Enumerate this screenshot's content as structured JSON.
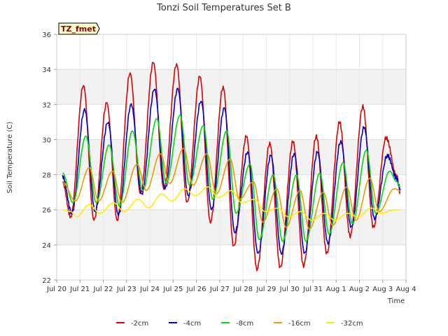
{
  "chart_data": {
    "type": "line",
    "title": "Tonzi Soil Temperatures Set B",
    "xlabel": "Time",
    "ylabel": "Soil Temperature (C)",
    "tag": "TZ_fmet",
    "xlim": [
      20,
      35
    ],
    "ylim": [
      22,
      36
    ],
    "x_ticks": [
      20,
      21,
      22,
      23,
      24,
      25,
      26,
      27,
      28,
      29,
      30,
      31,
      32,
      33,
      34,
      35
    ],
    "x_tick_labels": [
      "Jul 20",
      "Jul 21",
      "Jul 22",
      "Jul 23",
      "Jul 24",
      "Jul 25",
      "Jul 26",
      "Jul 27",
      "Jul 28",
      "Jul 29",
      "Jul 30",
      "Jul 31",
      "Aug 1",
      "Aug 2",
      "Aug 3",
      "Aug 4"
    ],
    "y_ticks": [
      22,
      24,
      26,
      28,
      30,
      32,
      34,
      36
    ],
    "y_tick_labels": [
      "22",
      "24",
      "26",
      "28",
      "30",
      "32",
      "34",
      "36"
    ],
    "grid": true,
    "legend_position": "bottom",
    "x_range_start_label": "Jul 20",
    "sampling": "daily minima and maxima per series; x in days of July (20 = Jul 20)",
    "series": [
      {
        "name": "-2cm",
        "color": "#dd0000",
        "x": [
          20.25,
          20.6,
          21.15,
          21.6,
          22.15,
          22.6,
          23.15,
          23.6,
          24.15,
          24.6,
          25.15,
          25.6,
          26.15,
          26.6,
          27.15,
          27.6,
          28.15,
          28.6,
          29.15,
          29.6,
          30.15,
          30.6,
          31.15,
          31.6,
          32.15,
          32.6,
          33.15,
          33.6,
          34.15,
          34.6,
          34.75
        ],
        "y": [
          27.6,
          25.6,
          33.1,
          25.4,
          32.1,
          25.4,
          33.8,
          26.9,
          34.4,
          27.2,
          34.3,
          26.4,
          33.6,
          25.3,
          33.0,
          23.9,
          30.2,
          22.6,
          29.8,
          22.7,
          29.9,
          22.8,
          30.2,
          23.5,
          31.0,
          24.5,
          31.9,
          25.0,
          30.1,
          27.9,
          27.0
        ]
      },
      {
        "name": "-4cm",
        "color": "#0000cc",
        "x": [
          20.25,
          20.65,
          21.2,
          21.65,
          22.2,
          22.65,
          23.2,
          23.65,
          24.2,
          24.65,
          25.2,
          25.65,
          26.2,
          26.65,
          27.2,
          27.65,
          28.2,
          28.65,
          29.2,
          29.65,
          30.2,
          30.65,
          31.2,
          31.65,
          32.2,
          32.65,
          33.2,
          33.65,
          34.2,
          34.6,
          34.75
        ],
        "y": [
          27.9,
          25.8,
          31.7,
          25.9,
          31.0,
          25.7,
          32.0,
          26.9,
          32.9,
          27.2,
          32.9,
          26.8,
          32.2,
          26.0,
          31.8,
          24.7,
          29.3,
          23.5,
          29.1,
          23.5,
          29.2,
          23.5,
          29.3,
          24.1,
          29.9,
          25.0,
          30.7,
          25.5,
          29.1,
          27.8,
          27.2
        ]
      },
      {
        "name": "-8cm",
        "color": "#00dd00",
        "x": [
          20.25,
          20.7,
          21.25,
          21.7,
          22.25,
          22.7,
          23.25,
          23.7,
          24.3,
          24.7,
          25.3,
          25.7,
          26.3,
          26.7,
          27.3,
          27.7,
          28.3,
          28.7,
          29.3,
          29.7,
          30.3,
          30.7,
          31.3,
          31.7,
          32.3,
          32.7,
          33.3,
          33.7,
          34.3,
          34.6,
          34.75
        ],
        "y": [
          28.1,
          26.4,
          30.2,
          26.4,
          29.7,
          26.2,
          30.5,
          27.1,
          31.2,
          27.5,
          31.4,
          27.4,
          30.8,
          26.6,
          30.5,
          25.8,
          28.6,
          24.3,
          28.0,
          24.2,
          28.0,
          24.2,
          28.1,
          24.6,
          28.7,
          25.2,
          29.4,
          25.8,
          28.2,
          27.6,
          27.3
        ]
      },
      {
        "name": "-16cm",
        "color": "#ee9900",
        "x": [
          20.25,
          20.8,
          21.4,
          21.8,
          22.4,
          22.8,
          23.45,
          23.85,
          24.45,
          24.85,
          25.45,
          25.85,
          26.45,
          26.85,
          27.45,
          27.85,
          28.45,
          28.85,
          29.45,
          29.85,
          30.45,
          30.85,
          31.45,
          31.85,
          32.45,
          32.85,
          33.45,
          33.85,
          34.5,
          34.75
        ],
        "y": [
          27.6,
          26.5,
          28.4,
          26.5,
          28.2,
          26.4,
          28.6,
          27.1,
          29.2,
          27.5,
          29.5,
          27.4,
          29.2,
          26.9,
          28.9,
          26.6,
          27.6,
          25.3,
          27.2,
          25.0,
          27.1,
          24.9,
          27.0,
          25.1,
          27.3,
          25.4,
          27.8,
          25.9,
          27.2,
          27.1
        ]
      },
      {
        "name": "-32cm",
        "color": "#ffee00",
        "x": [
          20.25,
          20.6,
          20.85,
          21.4,
          21.85,
          22.45,
          22.9,
          23.5,
          23.95,
          24.5,
          24.95,
          25.5,
          25.95,
          26.5,
          26.95,
          27.5,
          27.95,
          28.5,
          28.95,
          29.5,
          29.95,
          30.5,
          30.95,
          31.5,
          31.95,
          32.5,
          32.95,
          33.5,
          33.95,
          34.5,
          34.75
        ],
        "y": [
          26.0,
          25.9,
          25.6,
          26.3,
          25.8,
          26.4,
          25.9,
          26.6,
          26.1,
          26.9,
          26.5,
          27.2,
          26.8,
          27.3,
          26.7,
          27.1,
          26.4,
          26.6,
          25.9,
          26.1,
          25.6,
          25.9,
          25.4,
          25.8,
          25.4,
          25.8,
          25.6,
          26.1,
          25.8,
          26.0,
          26.0
        ]
      }
    ]
  }
}
